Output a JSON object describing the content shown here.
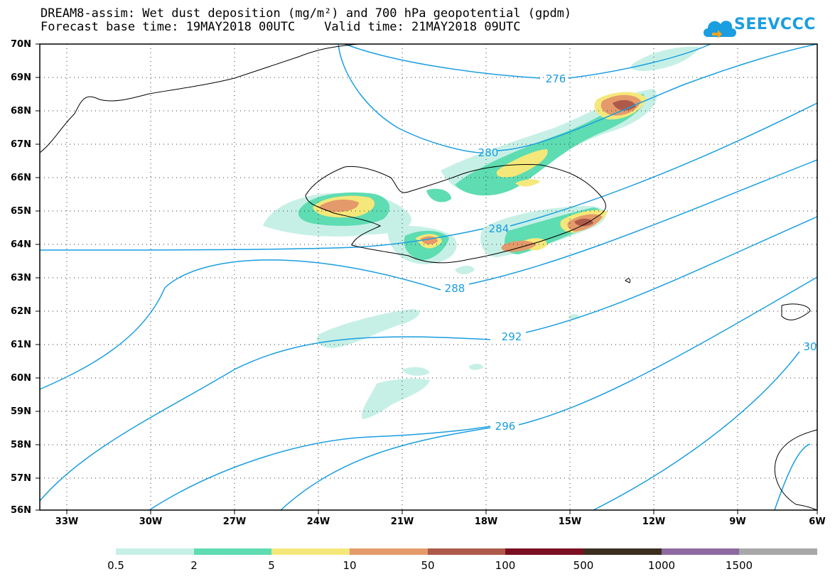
{
  "title": {
    "line1": "DREAM8-assim: Wet dust deposition (mg/m²) and 700 hPa geopotential (gpdm)",
    "line2": "Forecast base time: 19MAY2018 00UTC    Valid time: 21MAY2018 09UTC"
  },
  "logo": {
    "text": "SEEVCCC",
    "icon": "cloud-icon",
    "color": "#1a9ee0"
  },
  "map": {
    "lat_labels": [
      "70N",
      "69N",
      "68N",
      "67N",
      "66N",
      "65N",
      "64N",
      "63N",
      "62N",
      "61N",
      "60N",
      "59N",
      "58N",
      "57N",
      "56N"
    ],
    "lon_labels": [
      "33W",
      "30W",
      "27W",
      "24W",
      "21W",
      "18W",
      "15W",
      "12W",
      "9W",
      "6W"
    ],
    "lat_range": [
      56,
      70
    ],
    "lon_range": [
      -34.5,
      -6
    ],
    "grid": "dotted",
    "contour_color": "#1a9ee0",
    "contour_labels": [
      "276",
      "280",
      "284",
      "288",
      "292",
      "296",
      "30"
    ]
  },
  "colorbar": {
    "colors": [
      "#c6f0e6",
      "#5edcb2",
      "#f5e87a",
      "#e49a6a",
      "#ad5a4a",
      "#7a0e22",
      "#3b2e1e",
      "#8c6aa0",
      "#a8a8a8"
    ],
    "labels": [
      "0.5",
      "2",
      "5",
      "10",
      "50",
      "100",
      "500",
      "1000",
      "1500"
    ]
  }
}
